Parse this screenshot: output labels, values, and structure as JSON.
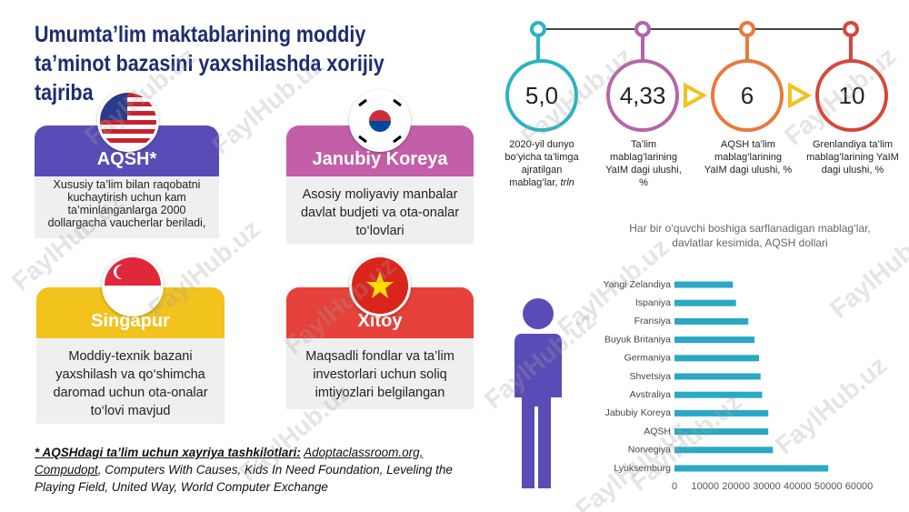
{
  "header": {
    "title": "Umumta’lim maktablarining moddiy ta’minot bazasini yaxshilashda xorijiy tajriba"
  },
  "watermark": "FaylHub.uz",
  "cards": [
    {
      "title": "AQSH*",
      "text": "Xususiy ta’lim bilan raqobatni kuchaytirish uchun kam ta’minlanganlarga 2000 dollargacha vaucherlar beriladi,"
    },
    {
      "title": "Janubiy Koreya",
      "text": "Asosiy moliyaviy manbalar davlat budjeti va ota-onalar to‘lovlari"
    },
    {
      "title": "Singapur",
      "text": "Moddiy-texnik bazani yaxshilash va qo‘shimcha daromad uchun ota-onalar to‘lovi mavjud"
    },
    {
      "title": "Xitoy",
      "text": "Maqsadli fondlar va ta’lim investorlari uchun soliq imtiyozlari belgilangan"
    }
  ],
  "footnote": {
    "lead": "* AQSHdagi ta’lim uchun xayriya tashkilotlari:",
    "links": "Adoptaclassroom.org, Compudopt",
    "rest": ", Computers With Causes, Kids In Need Foundation, Leveling the Playing Field, United Way, World Computer Exchange"
  },
  "stats": [
    {
      "value": "5,0",
      "caption": "2020-yil dunyo bo’yicha ta’limga ajratilgan mablag’lar,",
      "unit": "trln"
    },
    {
      "value": "4,33",
      "caption": "Ta’lim mablag’larining YaIM dagi ulushi, %"
    },
    {
      "value": "6",
      "caption": "AQSH ta’lim mablag’larining YaIM dagi ulushi, %"
    },
    {
      "value": "10",
      "caption": "Grenlandiya ta’lim mablag’larining YaIM dagi ulushi, %"
    }
  ],
  "chart_data": {
    "type": "barh",
    "title": "Har bir o‘quvchi boshiga sarflanadigan mablag‘lar, davlatlar kesimida, AQSH dollari",
    "categories": [
      "Yangi Zelandiya",
      "Ispaniya",
      "Fransiya",
      "Buyuk Britaniya",
      "Germaniya",
      "Shvetsiya",
      "Avstraliya",
      "Jabubiy Koreya",
      "AQSH",
      "Norvegiya",
      "Lyuksemburg"
    ],
    "values": [
      19000,
      20000,
      24000,
      26000,
      27500,
      28000,
      28500,
      30500,
      30500,
      32000,
      50000
    ],
    "color": "#2aa8c4",
    "xlim": [
      0,
      60000
    ],
    "xticks": [
      0,
      10000,
      20000,
      30000,
      40000,
      50000,
      60000
    ]
  }
}
